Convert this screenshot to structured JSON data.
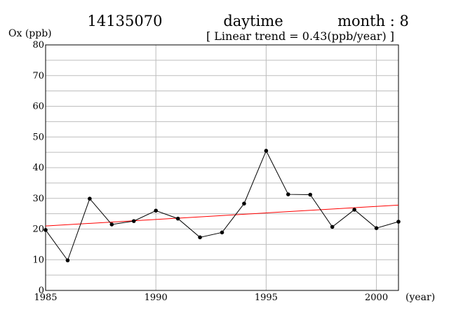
{
  "header": {
    "station": "14135070",
    "period": "daytime",
    "month": "month : 8",
    "trend_label": "[ Linear trend = 0.43(ppb/year) ]"
  },
  "chart_data": {
    "type": "line",
    "ylabel": "Ox (ppb)",
    "xlabel": "(year)",
    "xlim": [
      1985,
      2001
    ],
    "ylim": [
      0,
      80
    ],
    "x_ticks": [
      1985,
      1990,
      1995,
      2000
    ],
    "y_ticks": [
      0,
      10,
      20,
      30,
      40,
      50,
      60,
      70,
      80
    ],
    "grid": true,
    "x_grid_step": 5,
    "y_grid_step": 5,
    "series": [
      {
        "color": "#000000",
        "x": [
          1985,
          1986,
          1987,
          1988,
          1989,
          1990,
          1991,
          1992,
          1993,
          1994,
          1995,
          1996,
          1997,
          1998,
          1999,
          2000,
          2001
        ],
        "values": [
          19.7,
          9.8,
          29.9,
          21.5,
          22.6,
          26.0,
          23.4,
          17.3,
          18.9,
          28.3,
          45.5,
          31.3,
          31.2,
          20.7,
          26.3,
          20.3,
          22.4
        ]
      }
    ],
    "trend": {
      "color": "#ff0000",
      "start": [
        1985,
        21.0
      ],
      "end": [
        2001,
        27.8
      ]
    }
  }
}
